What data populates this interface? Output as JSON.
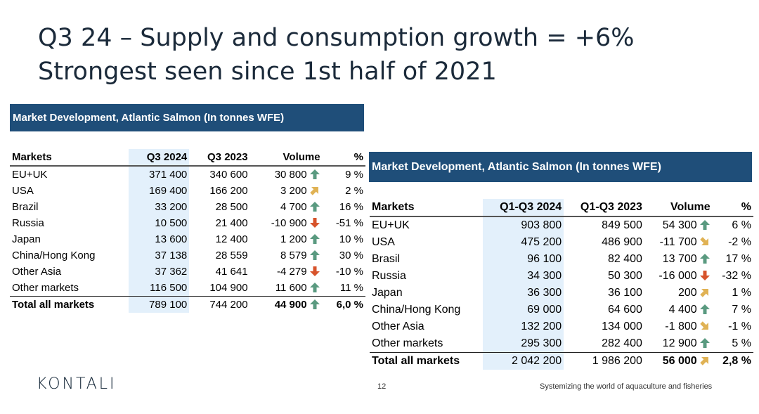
{
  "slide": {
    "title_line1": "Q3 24 – Supply and consumption growth = +6%",
    "title_line2": "Strongest seen since 1st half of 2021",
    "page_number": "12",
    "logo": "KONTALI",
    "tagline": "Systemizing the world of aquaculture and fisheries"
  },
  "colors": {
    "banner": "#1f4e79",
    "up": "#5a9a80",
    "slight": "#e0b254",
    "down": "#d7532b",
    "highlight": "#e3f0fb"
  },
  "table_q3": {
    "banner": "Market Development, Atlantic Salmon (In tonnes WFE)",
    "headers": [
      "Markets",
      "Q3 2024",
      "Q3 2023",
      "Volume",
      "%"
    ],
    "rows": [
      {
        "market": "EU+UK",
        "cur": "371 400",
        "prev": "340 600",
        "vol": "30 800",
        "trend": "up",
        "pct": "9 %"
      },
      {
        "market": "USA",
        "cur": "169 400",
        "prev": "166 200",
        "vol": "3 200",
        "trend": "slight-up",
        "pct": "2 %"
      },
      {
        "market": "Brazil",
        "cur": "33 200",
        "prev": "28 500",
        "vol": "4 700",
        "trend": "up",
        "pct": "16 %"
      },
      {
        "market": "Russia",
        "cur": "10 500",
        "prev": "21 400",
        "vol": "-10 900",
        "trend": "down",
        "pct": "-51 %"
      },
      {
        "market": "Japan",
        "cur": "13 600",
        "prev": "12 400",
        "vol": "1 200",
        "trend": "up",
        "pct": "10 %"
      },
      {
        "market": "China/Hong Kong",
        "cur": "37 138",
        "prev": "28 559",
        "vol": "8 579",
        "trend": "up",
        "pct": "30 %"
      },
      {
        "market": "Other Asia",
        "cur": "37 362",
        "prev": "41 641",
        "vol": "-4 279",
        "trend": "down",
        "pct": "-10 %"
      },
      {
        "market": "Other markets",
        "cur": "116 500",
        "prev": "104 900",
        "vol": "11 600",
        "trend": "up",
        "pct": "11 %"
      }
    ],
    "total": {
      "market": "Total all markets",
      "cur": "789 100",
      "prev": "744 200",
      "vol": "44 900",
      "trend": "up",
      "pct": "6,0 %"
    }
  },
  "table_ytd": {
    "banner": "Market Development, Atlantic Salmon (In tonnes WFE)",
    "headers": [
      "Markets",
      "Q1-Q3 2024",
      "Q1-Q3 2023",
      "Volume",
      "%"
    ],
    "rows": [
      {
        "market": "EU+UK",
        "cur": "903 800",
        "prev": "849 500",
        "vol": "54 300",
        "trend": "up",
        "pct": "6 %"
      },
      {
        "market": "USA",
        "cur": "475 200",
        "prev": "486 900",
        "vol": "-11 700",
        "trend": "slight-down",
        "pct": "-2 %"
      },
      {
        "market": "Brasil",
        "cur": "96 100",
        "prev": "82 400",
        "vol": "13 700",
        "trend": "up",
        "pct": "17 %"
      },
      {
        "market": "Russia",
        "cur": "34 300",
        "prev": "50 300",
        "vol": "-16 000",
        "trend": "down",
        "pct": "-32 %"
      },
      {
        "market": "Japan",
        "cur": "36 300",
        "prev": "36 100",
        "vol": "200",
        "trend": "slight-up",
        "pct": "1 %"
      },
      {
        "market": "China/Hong Kong",
        "cur": "69 000",
        "prev": "64 600",
        "vol": "4 400",
        "trend": "up",
        "pct": "7 %"
      },
      {
        "market": "Other Asia",
        "cur": "132 200",
        "prev": "134 000",
        "vol": "-1 800",
        "trend": "slight-down",
        "pct": "-1 %"
      },
      {
        "market": "Other markets",
        "cur": "295 300",
        "prev": "282 400",
        "vol": "12 900",
        "trend": "up",
        "pct": "5 %"
      }
    ],
    "total": {
      "market": "Total all markets",
      "cur": "2 042 200",
      "prev": "1 986 200",
      "vol": "56 000",
      "trend": "slight-up",
      "pct": "2,8 %"
    }
  }
}
